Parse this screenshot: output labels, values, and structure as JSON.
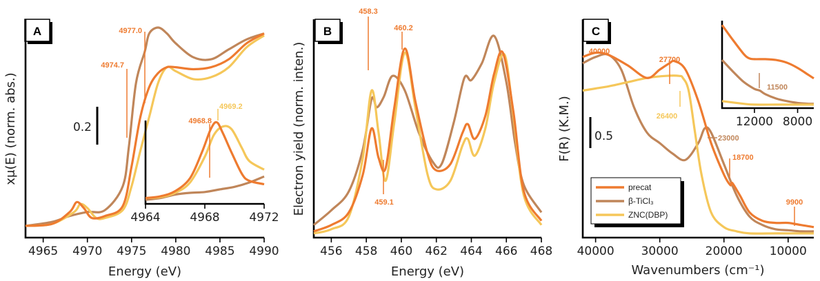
{
  "colors": {
    "precat": "#ee7b30",
    "ticl3": "#c0865a",
    "zncdbp": "#f5c75a",
    "annotation_orange": "#ee7b30",
    "annotation_yellow": "#f5c75a",
    "annotation_brown": "#c0865a"
  },
  "legend": {
    "items": [
      "precat",
      "β-TiCl₃",
      "ZNC(DBP)"
    ]
  },
  "chart_data": [
    {
      "panel": "A",
      "type": "line",
      "xlabel": "Energy (eV)",
      "ylabel": "xμ(E) (norm. abs.)",
      "xlim": [
        4963,
        4990
      ],
      "xticks": [
        4965,
        4970,
        4975,
        4980,
        4985,
        4990
      ],
      "scale_bar": "0.2",
      "series": [
        {
          "name": "precat",
          "x": [
            4963,
            4966,
            4968,
            4968.8,
            4969.6,
            4970.5,
            4972,
            4974,
            4975,
            4976,
            4977,
            4978,
            4979,
            4980,
            4982,
            4984,
            4986,
            4988,
            4990
          ],
          "y": [
            0.0,
            0.01,
            0.07,
            0.12,
            0.09,
            0.04,
            0.05,
            0.1,
            0.3,
            0.55,
            0.7,
            0.77,
            0.8,
            0.8,
            0.79,
            0.8,
            0.84,
            0.92,
            0.97
          ]
        },
        {
          "name": "β-TiCl₃",
          "x": [
            4963,
            4966,
            4968,
            4970,
            4972,
            4974,
            4974.7,
            4975.5,
            4976.5,
            4977,
            4978,
            4979,
            4980,
            4982,
            4984,
            4986,
            4988,
            4990
          ],
          "y": [
            0.0,
            0.02,
            0.05,
            0.07,
            0.08,
            0.2,
            0.4,
            0.72,
            0.88,
            0.97,
            1.0,
            0.97,
            0.92,
            0.85,
            0.84,
            0.89,
            0.94,
            0.97
          ]
        },
        {
          "name": "ZNC(DBP)",
          "x": [
            4963,
            4966,
            4968.5,
            4969.2,
            4970,
            4971,
            4972,
            4974,
            4975,
            4976,
            4977,
            4978,
            4979,
            4980,
            4982,
            4984,
            4986,
            4988,
            4990
          ],
          "y": [
            0.0,
            0.01,
            0.07,
            0.11,
            0.09,
            0.04,
            0.04,
            0.08,
            0.2,
            0.38,
            0.55,
            0.72,
            0.8,
            0.78,
            0.74,
            0.75,
            0.8,
            0.9,
            0.96
          ]
        }
      ],
      "annotations": [
        "4977.0",
        "4974.7",
        "4968.8",
        "4969.2"
      ],
      "inset": {
        "xlim": [
          4964,
          4972
        ],
        "xticks": [
          4964,
          4968,
          4972
        ],
        "series": [
          {
            "name": "precat",
            "x": [
              4964,
              4965,
              4966,
              4967,
              4967.8,
              4968.4,
              4968.8,
              4969.2,
              4969.8,
              4970.5,
              4971,
              4972
            ],
            "y": [
              0.02,
              0.04,
              0.1,
              0.25,
              0.55,
              0.82,
              0.9,
              0.78,
              0.55,
              0.3,
              0.22,
              0.18
            ]
          },
          {
            "name": "β-TiCl₃",
            "x": [
              4964,
              4965,
              4966,
              4967,
              4968,
              4969,
              4970,
              4971,
              4972
            ],
            "y": [
              0.0,
              0.02,
              0.06,
              0.08,
              0.09,
              0.12,
              0.15,
              0.2,
              0.27
            ]
          },
          {
            "name": "ZNC(DBP)",
            "x": [
              4964,
              4965,
              4966,
              4967,
              4968,
              4968.6,
              4969.2,
              4969.8,
              4970.5,
              4971,
              4972
            ],
            "y": [
              0.02,
              0.03,
              0.08,
              0.2,
              0.5,
              0.75,
              0.85,
              0.82,
              0.6,
              0.45,
              0.35
            ]
          }
        ]
      }
    },
    {
      "panel": "B",
      "type": "line",
      "xlabel": "Energy (eV)",
      "ylabel": "Electron yield (norm. inten.)",
      "xlim": [
        455,
        468
      ],
      "xticks": [
        456,
        458,
        460,
        462,
        464,
        466,
        468
      ],
      "series": [
        {
          "name": "precat",
          "x": [
            455,
            456,
            457,
            457.8,
            458.3,
            458.7,
            459.1,
            459.6,
            460.2,
            460.8,
            461.5,
            462,
            462.8,
            463.5,
            463.8,
            464.2,
            464.8,
            465.3,
            465.8,
            466.4,
            467,
            468
          ],
          "y": [
            0.03,
            0.06,
            0.12,
            0.3,
            0.52,
            0.38,
            0.33,
            0.62,
            0.9,
            0.65,
            0.4,
            0.32,
            0.35,
            0.5,
            0.54,
            0.47,
            0.58,
            0.78,
            0.88,
            0.6,
            0.22,
            0.08
          ]
        },
        {
          "name": "β-TiCl₃",
          "x": [
            455,
            456,
            457,
            457.8,
            458.3,
            458.6,
            459,
            459.5,
            460.2,
            461,
            461.8,
            462.3,
            463,
            463.6,
            464,
            464.6,
            465.3,
            466,
            466.5,
            467,
            468
          ],
          "y": [
            0.06,
            0.13,
            0.22,
            0.42,
            0.66,
            0.62,
            0.67,
            0.77,
            0.7,
            0.5,
            0.36,
            0.35,
            0.55,
            0.76,
            0.75,
            0.83,
            0.96,
            0.74,
            0.45,
            0.25,
            0.12
          ]
        },
        {
          "name": "ZNC(DBP)",
          "x": [
            455,
            456,
            457,
            457.8,
            458.3,
            458.7,
            459.1,
            459.6,
            460.2,
            460.8,
            461.5,
            462,
            462.8,
            463.5,
            463.8,
            464.2,
            464.8,
            465.3,
            465.9,
            466.4,
            467,
            468
          ],
          "y": [
            0.02,
            0.04,
            0.1,
            0.38,
            0.7,
            0.5,
            0.27,
            0.55,
            0.88,
            0.62,
            0.3,
            0.23,
            0.27,
            0.44,
            0.47,
            0.39,
            0.52,
            0.74,
            0.87,
            0.58,
            0.2,
            0.06
          ]
        }
      ],
      "annotations": [
        "458.3",
        "460.2",
        "459.1"
      ]
    },
    {
      "panel": "C",
      "type": "line",
      "xlabel": "Wavenumbers (cm⁻¹)",
      "ylabel": "F(R) (K.M.)",
      "xlim": [
        42000,
        6000
      ],
      "xticks": [
        40000,
        30000,
        20000,
        10000
      ],
      "scale_bar": "0.5",
      "series": [
        {
          "name": "precat",
          "x": [
            42000,
            40000,
            38000,
            35000,
            32000,
            30000,
            28500,
            27700,
            26000,
            24000,
            22000,
            20000,
            19000,
            18700,
            17500,
            16000,
            14000,
            12000,
            10000,
            8000,
            6000
          ],
          "y": [
            0.86,
            0.88,
            0.87,
            0.82,
            0.76,
            0.8,
            0.83,
            0.84,
            0.8,
            0.65,
            0.45,
            0.3,
            0.25,
            0.26,
            0.2,
            0.12,
            0.08,
            0.07,
            0.07,
            0.06,
            0.05
          ]
        },
        {
          "name": "β-TiCl₃",
          "x": [
            42000,
            40000,
            38000,
            36000,
            34000,
            32000,
            30000,
            28000,
            26000,
            24000,
            23000,
            22000,
            20000,
            18000,
            16000,
            14000,
            12000,
            10000,
            8000,
            6000
          ],
          "y": [
            0.83,
            0.86,
            0.87,
            0.8,
            0.62,
            0.5,
            0.45,
            0.4,
            0.37,
            0.45,
            0.52,
            0.5,
            0.35,
            0.2,
            0.1,
            0.06,
            0.04,
            0.035,
            0.03,
            0.03
          ]
        },
        {
          "name": "ZNC(DBP)",
          "x": [
            42000,
            40000,
            38000,
            35000,
            32000,
            29000,
            27000,
            26400,
            25500,
            24500,
            23500,
            22000,
            20000,
            18000,
            16000,
            12000,
            8000,
            6000
          ],
          "y": [
            0.7,
            0.71,
            0.72,
            0.74,
            0.76,
            0.77,
            0.77,
            0.76,
            0.7,
            0.5,
            0.3,
            0.12,
            0.05,
            0.03,
            0.02,
            0.02,
            0.02,
            0.02
          ]
        }
      ],
      "annotations": [
        "40000",
        "27700",
        "26400",
        "23000",
        "18700",
        "9900",
        "11500"
      ],
      "inset": {
        "xlim": [
          15000,
          6500
        ],
        "xticks": [
          12000,
          8000
        ],
        "series": [
          {
            "name": "precat",
            "x": [
              15000,
              14000,
              13000,
              12500,
              12000,
              11000,
              10000,
              9000,
              8000,
              7000,
              6500
            ],
            "y": [
              0.95,
              0.78,
              0.62,
              0.57,
              0.56,
              0.56,
              0.55,
              0.52,
              0.46,
              0.38,
              0.34
            ]
          },
          {
            "name": "β-TiCl₃",
            "x": [
              15000,
              14000,
              13000,
              12000,
              11500,
              11000,
              10000,
              9000,
              8000,
              7000,
              6500
            ],
            "y": [
              0.55,
              0.42,
              0.3,
              0.22,
              0.2,
              0.16,
              0.11,
              0.08,
              0.06,
              0.05,
              0.05
            ]
          },
          {
            "name": "ZNC(DBP)",
            "x": [
              15000,
              13000,
              12000,
              10000,
              8000,
              6500
            ],
            "y": [
              0.08,
              0.05,
              0.04,
              0.04,
              0.04,
              0.04
            ]
          }
        ]
      }
    }
  ]
}
